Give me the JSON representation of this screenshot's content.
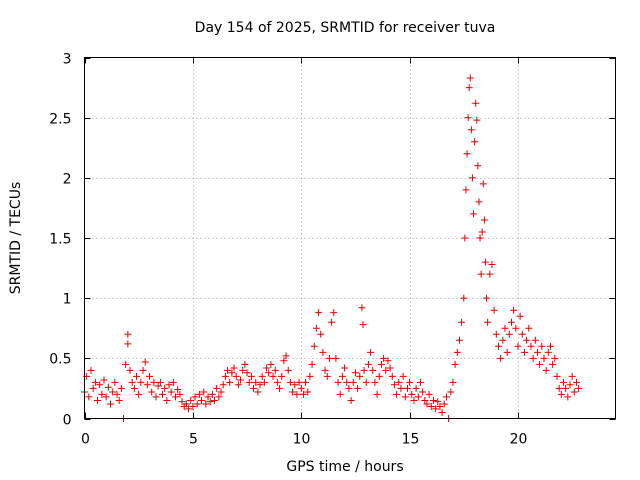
{
  "chart_data": {
    "type": "scatter",
    "title": "Day 154 of 2025, SRMTID for receiver tuva",
    "xlabel": "GPS time / hours",
    "ylabel": "SRMTID / TECUs",
    "xlim": [
      0,
      24.5
    ],
    "ylim": [
      0,
      3
    ],
    "xticks": [
      0,
      5,
      10,
      15,
      20
    ],
    "xtick_labels": [
      "0",
      "5",
      "10",
      "15",
      "20"
    ],
    "yticks": [
      0,
      0.5,
      1,
      1.5,
      2,
      2.5,
      3
    ],
    "ytick_labels": [
      "0",
      "0.5",
      "1",
      "1.5",
      "2",
      "2.5",
      "3"
    ],
    "grid": true,
    "marker": "+",
    "color": "#e00000",
    "series": [
      {
        "name": "tuva",
        "points": [
          [
            0.0,
            0.22
          ],
          [
            0.1,
            0.35
          ],
          [
            0.2,
            0.18
          ],
          [
            0.3,
            0.4
          ],
          [
            0.4,
            0.25
          ],
          [
            0.5,
            0.3
          ],
          [
            0.6,
            0.15
          ],
          [
            0.7,
            0.28
          ],
          [
            0.8,
            0.2
          ],
          [
            0.9,
            0.32
          ],
          [
            1.0,
            0.18
          ],
          [
            1.1,
            0.26
          ],
          [
            1.2,
            0.12
          ],
          [
            1.3,
            0.22
          ],
          [
            1.4,
            0.3
          ],
          [
            1.5,
            0.2
          ],
          [
            1.6,
            0.15
          ],
          [
            1.7,
            0.25
          ],
          [
            1.8,
            0.0
          ],
          [
            1.9,
            0.45
          ],
          [
            2.0,
            0.62
          ],
          [
            2.0,
            0.7
          ],
          [
            2.1,
            0.4
          ],
          [
            2.2,
            0.3
          ],
          [
            2.3,
            0.25
          ],
          [
            2.4,
            0.35
          ],
          [
            2.5,
            0.2
          ],
          [
            2.6,
            0.3
          ],
          [
            2.7,
            0.4
          ],
          [
            2.8,
            0.47
          ],
          [
            2.9,
            0.28
          ],
          [
            3.0,
            0.35
          ],
          [
            3.1,
            0.22
          ],
          [
            3.2,
            0.3
          ],
          [
            3.3,
            0.18
          ],
          [
            3.4,
            0.27
          ],
          [
            3.5,
            0.3
          ],
          [
            3.6,
            0.2
          ],
          [
            3.7,
            0.25
          ],
          [
            3.8,
            0.15
          ],
          [
            3.9,
            0.28
          ],
          [
            4.0,
            0.22
          ],
          [
            4.1,
            0.3
          ],
          [
            4.2,
            0.18
          ],
          [
            4.3,
            0.24
          ],
          [
            4.4,
            0.2
          ],
          [
            4.5,
            0.14
          ],
          [
            4.6,
            0.1
          ],
          [
            4.7,
            0.12
          ],
          [
            4.8,
            0.08
          ],
          [
            4.9,
            0.15
          ],
          [
            5.0,
            0.1
          ],
          [
            5.1,
            0.18
          ],
          [
            5.2,
            0.12
          ],
          [
            5.3,
            0.2
          ],
          [
            5.4,
            0.15
          ],
          [
            5.5,
            0.22
          ],
          [
            5.6,
            0.12
          ],
          [
            5.7,
            0.18
          ],
          [
            5.8,
            0.14
          ],
          [
            5.9,
            0.2
          ],
          [
            6.0,
            0.15
          ],
          [
            6.1,
            0.25
          ],
          [
            6.2,
            0.18
          ],
          [
            6.3,
            0.22
          ],
          [
            6.4,
            0.28
          ],
          [
            6.5,
            0.35
          ],
          [
            6.6,
            0.4
          ],
          [
            6.7,
            0.3
          ],
          [
            6.8,
            0.38
          ],
          [
            6.9,
            0.42
          ],
          [
            7.0,
            0.35
          ],
          [
            7.1,
            0.28
          ],
          [
            7.2,
            0.32
          ],
          [
            7.3,
            0.4
          ],
          [
            7.4,
            0.45
          ],
          [
            7.5,
            0.38
          ],
          [
            7.6,
            0.3
          ],
          [
            7.7,
            0.35
          ],
          [
            7.8,
            0.25
          ],
          [
            7.9,
            0.3
          ],
          [
            8.0,
            0.22
          ],
          [
            8.1,
            0.28
          ],
          [
            8.2,
            0.35
          ],
          [
            8.3,
            0.3
          ],
          [
            8.4,
            0.42
          ],
          [
            8.5,
            0.38
          ],
          [
            8.6,
            0.45
          ],
          [
            8.7,
            0.35
          ],
          [
            8.8,
            0.4
          ],
          [
            8.9,
            0.3
          ],
          [
            9.0,
            0.25
          ],
          [
            9.1,
            0.35
          ],
          [
            9.2,
            0.48
          ],
          [
            9.3,
            0.52
          ],
          [
            9.4,
            0.4
          ],
          [
            9.5,
            0.3
          ],
          [
            9.6,
            0.22
          ],
          [
            9.7,
            0.28
          ],
          [
            9.8,
            0.2
          ],
          [
            9.9,
            0.3
          ],
          [
            10.0,
            0.25
          ],
          [
            10.1,
            0.2
          ],
          [
            10.2,
            0.3
          ],
          [
            10.3,
            0.22
          ],
          [
            10.4,
            0.35
          ],
          [
            10.5,
            0.45
          ],
          [
            10.6,
            0.6
          ],
          [
            10.7,
            0.75
          ],
          [
            10.8,
            0.88
          ],
          [
            10.9,
            0.7
          ],
          [
            11.0,
            0.55
          ],
          [
            11.1,
            0.4
          ],
          [
            11.2,
            0.35
          ],
          [
            11.3,
            0.5
          ],
          [
            11.4,
            0.8
          ],
          [
            11.5,
            0.88
          ],
          [
            11.6,
            0.5
          ],
          [
            11.7,
            0.3
          ],
          [
            11.8,
            0.2
          ],
          [
            11.9,
            0.35
          ],
          [
            12.0,
            0.42
          ],
          [
            12.1,
            0.3
          ],
          [
            12.2,
            0.25
          ],
          [
            12.3,
            0.15
          ],
          [
            12.4,
            0.3
          ],
          [
            12.5,
            0.38
          ],
          [
            12.6,
            0.25
          ],
          [
            12.7,
            0.35
          ],
          [
            12.8,
            0.92
          ],
          [
            12.85,
            0.78
          ],
          [
            12.9,
            0.4
          ],
          [
            13.0,
            0.3
          ],
          [
            13.1,
            0.45
          ],
          [
            13.2,
            0.55
          ],
          [
            13.3,
            0.4
          ],
          [
            13.4,
            0.3
          ],
          [
            13.5,
            0.2
          ],
          [
            13.6,
            0.35
          ],
          [
            13.7,
            0.45
          ],
          [
            13.8,
            0.5
          ],
          [
            13.9,
            0.4
          ],
          [
            14.0,
            0.48
          ],
          [
            14.1,
            0.42
          ],
          [
            14.2,
            0.35
          ],
          [
            14.3,
            0.28
          ],
          [
            14.4,
            0.2
          ],
          [
            14.5,
            0.3
          ],
          [
            14.6,
            0.25
          ],
          [
            14.7,
            0.35
          ],
          [
            14.8,
            0.18
          ],
          [
            14.9,
            0.25
          ],
          [
            15.0,
            0.3
          ],
          [
            15.1,
            0.2
          ],
          [
            15.2,
            0.15
          ],
          [
            15.3,
            0.25
          ],
          [
            15.4,
            0.18
          ],
          [
            15.5,
            0.3
          ],
          [
            15.6,
            0.22
          ],
          [
            15.7,
            0.15
          ],
          [
            15.8,
            0.12
          ],
          [
            15.9,
            0.2
          ],
          [
            16.0,
            0.1
          ],
          [
            16.1,
            0.15
          ],
          [
            16.2,
            0.08
          ],
          [
            16.3,
            0.14
          ],
          [
            16.4,
            0.1
          ],
          [
            16.5,
            0.05
          ],
          [
            16.6,
            0.12
          ],
          [
            16.7,
            0.18
          ],
          [
            16.8,
            0.0
          ],
          [
            16.9,
            0.22
          ],
          [
            17.0,
            0.3
          ],
          [
            17.1,
            0.45
          ],
          [
            17.2,
            0.55
          ],
          [
            17.3,
            0.65
          ],
          [
            17.4,
            0.8
          ],
          [
            17.5,
            1.0
          ],
          [
            17.55,
            1.5
          ],
          [
            17.6,
            1.9
          ],
          [
            17.65,
            2.2
          ],
          [
            17.7,
            2.5
          ],
          [
            17.75,
            2.75
          ],
          [
            17.8,
            2.83
          ],
          [
            17.85,
            2.4
          ],
          [
            17.9,
            2.0
          ],
          [
            17.95,
            1.7
          ],
          [
            18.0,
            2.3
          ],
          [
            18.05,
            2.62
          ],
          [
            18.1,
            2.48
          ],
          [
            18.15,
            2.1
          ],
          [
            18.2,
            1.8
          ],
          [
            18.25,
            1.5
          ],
          [
            18.3,
            1.2
          ],
          [
            18.35,
            1.55
          ],
          [
            18.4,
            1.95
          ],
          [
            18.45,
            1.65
          ],
          [
            18.5,
            1.3
          ],
          [
            18.55,
            1.0
          ],
          [
            18.6,
            0.8
          ],
          [
            18.7,
            1.2
          ],
          [
            18.8,
            1.28
          ],
          [
            18.9,
            0.9
          ],
          [
            19.0,
            0.7
          ],
          [
            19.1,
            0.6
          ],
          [
            19.2,
            0.5
          ],
          [
            19.3,
            0.65
          ],
          [
            19.4,
            0.75
          ],
          [
            19.5,
            0.55
          ],
          [
            19.6,
            0.7
          ],
          [
            19.7,
            0.8
          ],
          [
            19.8,
            0.9
          ],
          [
            19.9,
            0.75
          ],
          [
            20.0,
            0.6
          ],
          [
            20.1,
            0.85
          ],
          [
            20.2,
            0.7
          ],
          [
            20.3,
            0.55
          ],
          [
            20.4,
            0.65
          ],
          [
            20.5,
            0.75
          ],
          [
            20.6,
            0.6
          ],
          [
            20.7,
            0.5
          ],
          [
            20.8,
            0.65
          ],
          [
            20.9,
            0.55
          ],
          [
            21.0,
            0.45
          ],
          [
            21.1,
            0.6
          ],
          [
            21.2,
            0.5
          ],
          [
            21.3,
            0.4
          ],
          [
            21.4,
            0.55
          ],
          [
            21.5,
            0.6
          ],
          [
            21.6,
            0.45
          ],
          [
            21.7,
            0.5
          ],
          [
            21.8,
            0.35
          ],
          [
            21.9,
            0.25
          ],
          [
            22.0,
            0.2
          ],
          [
            22.1,
            0.3
          ],
          [
            22.2,
            0.25
          ],
          [
            22.3,
            0.18
          ],
          [
            22.4,
            0.28
          ],
          [
            22.5,
            0.35
          ],
          [
            22.6,
            0.22
          ],
          [
            22.7,
            0.3
          ],
          [
            22.8,
            0.25
          ]
        ]
      }
    ]
  }
}
